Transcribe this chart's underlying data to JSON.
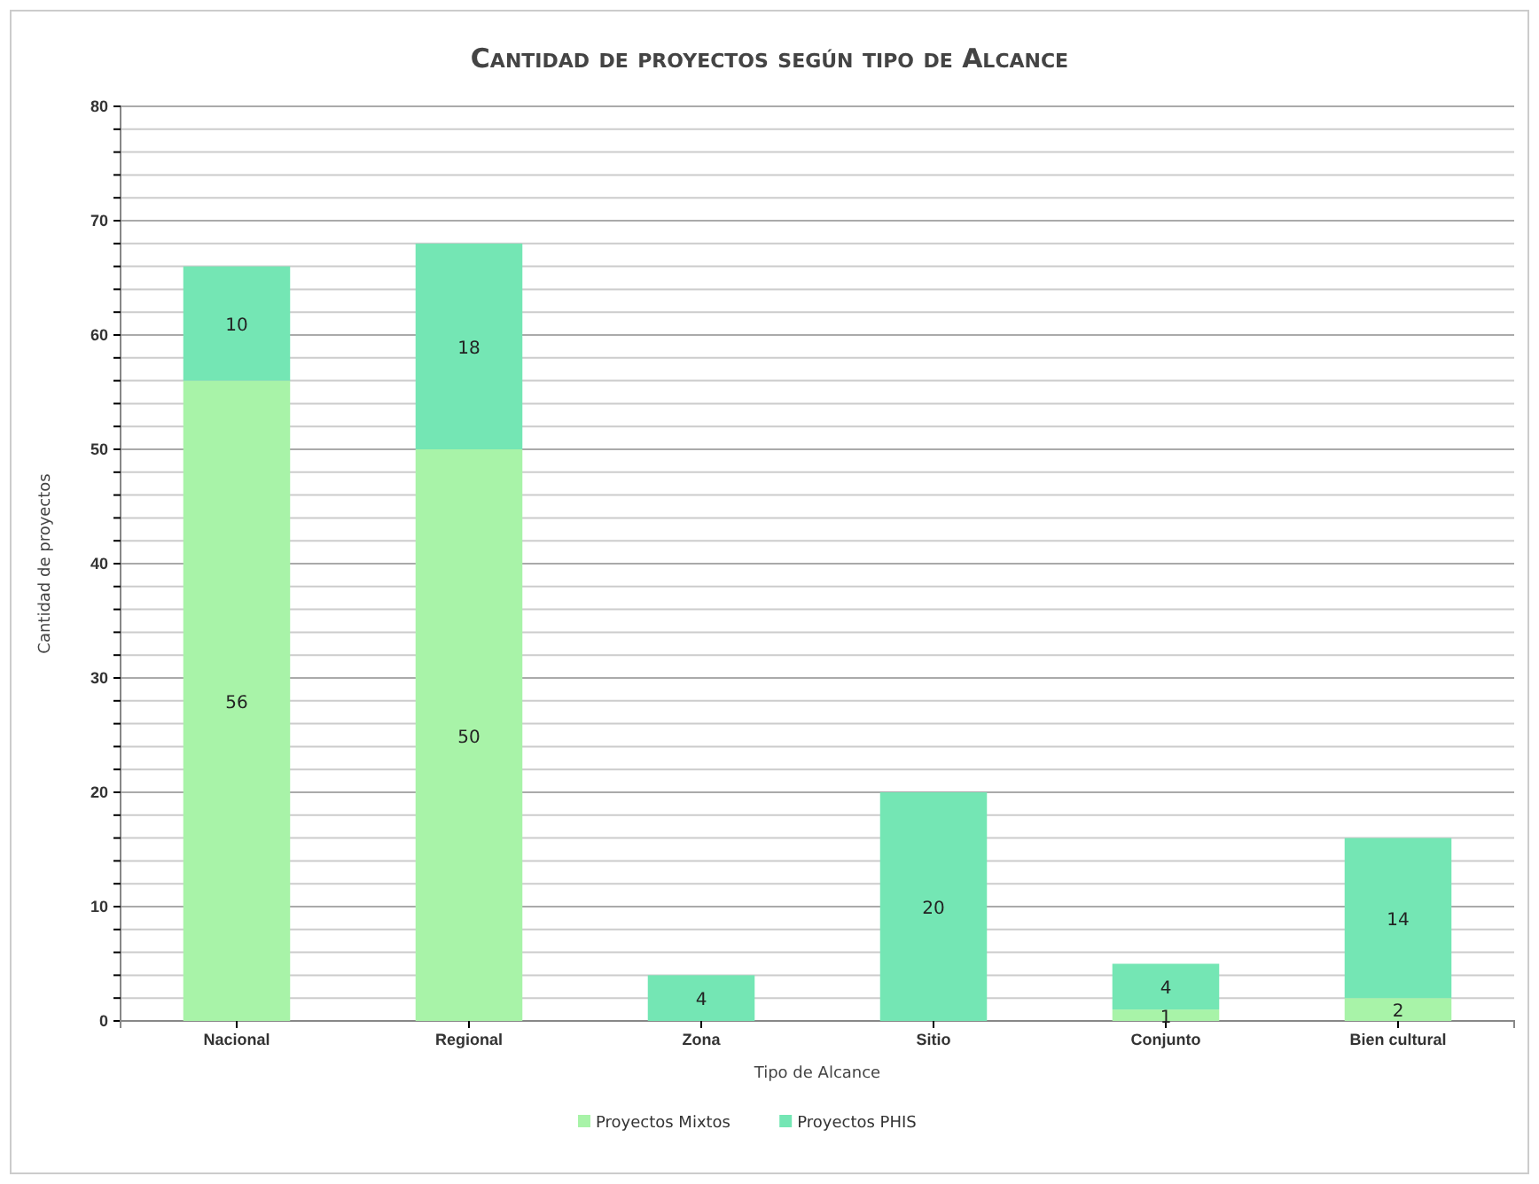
{
  "chart_data": {
    "type": "bar",
    "title": "Cantidad de proyectos según tipo de Alcance",
    "xlabel": "Tipo de Alcance",
    "ylabel": "Cantidad de proyectos",
    "categories": [
      "Nacional",
      "Regional",
      "Zona",
      "Sitio",
      "Conjunto",
      "Bien cultural"
    ],
    "series": [
      {
        "name": "Proyectos Mixtos",
        "color": "#a8f3a8",
        "values": [
          56,
          50,
          0,
          0,
          1,
          2
        ],
        "value_labels": [
          "56",
          "50",
          null,
          null,
          "1",
          "2"
        ]
      },
      {
        "name": "Proyectos PHIS",
        "color": "#74e6b4",
        "values": [
          10,
          18,
          4,
          20,
          4,
          14
        ],
        "value_labels": [
          "10",
          "18",
          "4",
          "20",
          "4",
          "14"
        ]
      }
    ],
    "stacked": true,
    "ylim": [
      0,
      80
    ],
    "yticks": [
      0,
      {
        "value": 2,
        "label": null
      },
      {
        "value": 4,
        "label": null
      },
      {
        "value": 6,
        "label": null
      },
      {
        "value": 8,
        "label": null
      },
      10,
      {
        "value": 12,
        "label": null
      },
      {
        "value": 14,
        "label": null
      },
      {
        "value": 16,
        "label": null
      },
      {
        "value": 18,
        "label": null
      },
      20,
      {
        "value": 22,
        "label": null
      },
      {
        "value": 24,
        "label": null
      },
      {
        "value": 26,
        "label": null
      },
      {
        "value": 28,
        "label": null
      },
      30,
      {
        "value": 32,
        "label": null
      },
      {
        "value": 34,
        "label": null
      },
      {
        "value": 36,
        "label": null
      },
      {
        "value": 38,
        "label": null
      },
      40,
      {
        "value": 42,
        "label": null
      },
      {
        "value": 44,
        "label": null
      },
      {
        "value": 46,
        "label": null
      },
      {
        "value": 48,
        "label": null
      },
      50,
      {
        "value": 52,
        "label": null
      },
      {
        "value": 54,
        "label": null
      },
      {
        "value": 56,
        "label": null
      },
      {
        "value": 58,
        "label": null
      },
      60,
      {
        "value": 62,
        "label": null
      },
      {
        "value": 64,
        "label": null
      },
      {
        "value": 66,
        "label": null
      },
      {
        "value": 68,
        "label": null
      },
      70,
      {
        "value": 72,
        "label": null
      },
      {
        "value": 74,
        "label": null
      },
      {
        "value": 76,
        "label": null
      },
      {
        "value": 78,
        "label": null
      },
      80
    ],
    "grid": true,
    "legend": "bottom"
  }
}
